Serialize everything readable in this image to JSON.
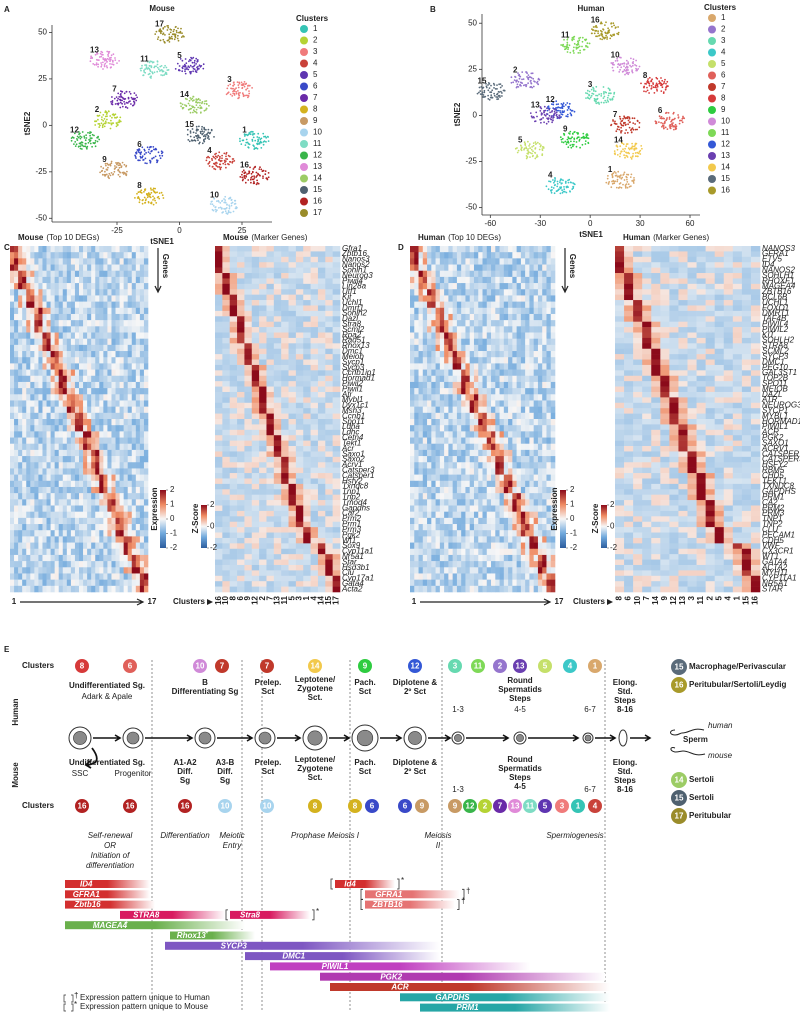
{
  "chart_data": [
    {
      "type": "scatter",
      "panel": "A",
      "title": "Mouse",
      "x_label": "tSNE1",
      "y_label": "tSNE2",
      "xlim": [
        -51,
        37
      ],
      "ylim": [
        -52,
        54
      ],
      "xticks": [
        -25,
        0,
        25
      ],
      "yticks": [
        -50,
        -25,
        0,
        25,
        50
      ],
      "legend_title": "Clusters",
      "series": [
        {
          "name": "1",
          "color": "#35c4b5",
          "x": [
            30
          ],
          "values": [
            -8
          ]
        },
        {
          "name": "2",
          "color": "#b5d334",
          "x": [
            -29
          ],
          "values": [
            3
          ]
        },
        {
          "name": "3",
          "color": "#f07b7b",
          "x": [
            24
          ],
          "values": [
            19
          ]
        },
        {
          "name": "4",
          "color": "#c9423a",
          "x": [
            16
          ],
          "values": [
            -19
          ]
        },
        {
          "name": "5",
          "color": "#5e35b1",
          "x": [
            4
          ],
          "values": [
            32
          ]
        },
        {
          "name": "6",
          "color": "#3949c8",
          "x": [
            -12
          ],
          "values": [
            -16
          ]
        },
        {
          "name": "7",
          "color": "#6a2aa8",
          "x": [
            -22
          ],
          "values": [
            14
          ]
        },
        {
          "name": "8",
          "color": "#d4b21e",
          "x": [
            -12
          ],
          "values": [
            -38
          ]
        },
        {
          "name": "9",
          "color": "#c89a64",
          "x": [
            -26
          ],
          "values": [
            -24
          ]
        },
        {
          "name": "10",
          "color": "#a8d4ee",
          "x": [
            18
          ],
          "values": [
            -43
          ]
        },
        {
          "name": "11",
          "color": "#7edcc4",
          "x": [
            -10
          ],
          "values": [
            30
          ]
        },
        {
          "name": "12",
          "color": "#39b54a",
          "x": [
            -38
          ],
          "values": [
            -8
          ]
        },
        {
          "name": "13",
          "color": "#e08ad8",
          "x": [
            -30
          ],
          "values": [
            35
          ]
        },
        {
          "name": "14",
          "color": "#9ccc65",
          "x": [
            6
          ],
          "values": [
            11
          ]
        },
        {
          "name": "15",
          "color": "#4f6170",
          "x": [
            8
          ],
          "values": [
            -5
          ]
        },
        {
          "name": "16",
          "color": "#b22222",
          "x": [
            30
          ],
          "values": [
            -27
          ]
        },
        {
          "name": "17",
          "color": "#9a8c2a",
          "x": [
            -4
          ],
          "values": [
            49
          ]
        }
      ]
    },
    {
      "type": "scatter",
      "panel": "B",
      "title": "Human",
      "x_label": "tSNE1",
      "y_label": "tSNE2",
      "xlim": [
        -65,
        66
      ],
      "ylim": [
        -54,
        55
      ],
      "xticks": [
        -60,
        -30,
        0,
        30,
        60
      ],
      "yticks": [
        -50,
        -25,
        0,
        25,
        50
      ],
      "legend_title": "Clusters",
      "series": [
        {
          "name": "1",
          "color": "#d9a86c",
          "x": [
            18
          ],
          "values": [
            -35
          ]
        },
        {
          "name": "2",
          "color": "#9575cd",
          "x": [
            -39
          ],
          "values": [
            19
          ]
        },
        {
          "name": "3",
          "color": "#66d9b0",
          "x": [
            6
          ],
          "values": [
            11
          ]
        },
        {
          "name": "4",
          "color": "#3cc8c8",
          "x": [
            -18
          ],
          "values": [
            -38
          ]
        },
        {
          "name": "5",
          "color": "#c5e06a",
          "x": [
            -36
          ],
          "values": [
            -19
          ]
        },
        {
          "name": "6",
          "color": "#e0605a",
          "x": [
            48
          ],
          "values": [
            -3
          ]
        },
        {
          "name": "7",
          "color": "#c0392b",
          "x": [
            21
          ],
          "values": [
            -5
          ]
        },
        {
          "name": "8",
          "color": "#d63a3a",
          "x": [
            39
          ],
          "values": [
            16
          ]
        },
        {
          "name": "9",
          "color": "#2ecc40",
          "x": [
            -9
          ],
          "values": [
            -13
          ]
        },
        {
          "name": "10",
          "color": "#d08ad8",
          "x": [
            21
          ],
          "values": [
            27
          ]
        },
        {
          "name": "11",
          "color": "#7ed957",
          "x": [
            -9
          ],
          "values": [
            38
          ]
        },
        {
          "name": "12",
          "color": "#3458d6",
          "x": [
            -18
          ],
          "values": [
            3
          ]
        },
        {
          "name": "13",
          "color": "#6a3fb0",
          "x": [
            -27
          ],
          "values": [
            0
          ]
        },
        {
          "name": "14",
          "color": "#f2c94c",
          "x": [
            23
          ],
          "values": [
            -19
          ]
        },
        {
          "name": "15",
          "color": "#5a6b7a",
          "x": [
            -59
          ],
          "values": [
            13
          ]
        },
        {
          "name": "16",
          "color": "#a89a2a",
          "x": [
            9
          ],
          "values": [
            46
          ]
        }
      ]
    }
  ],
  "heatmaps": [
    {
      "letter": "C",
      "left_title_bold": "Mouse",
      "left_title_rest": "(Top 10 DEGs)",
      "genes_label": "Genes",
      "expression_label": "Expression",
      "expression_ticks": [
        2,
        1,
        0,
        -1,
        -2
      ],
      "x_start": "1",
      "x_end": "17",
      "right_title_bold": "Mouse",
      "right_title_rest": "(Marker Genes)",
      "zscore_label": "Z-Score",
      "zscore_ticks": [
        2,
        0,
        -2
      ],
      "clusters_label": "Clusters",
      "cluster_order": [
        "16",
        "10",
        "8",
        "6",
        "9",
        "12",
        "2",
        "7",
        "13",
        "11",
        "5",
        "3",
        "1",
        "4",
        "14",
        "15",
        "17"
      ],
      "marker_genes": [
        "Gfra1",
        "Zbtb16",
        "Nanos3",
        "Nanos2",
        "Sohlh1",
        "Neurog3",
        "Piwil4",
        "Lin28a",
        "Utf1",
        "Kit",
        "Uchl1",
        "Dmrt1",
        "Sohlh2",
        "Dazl",
        "Stra8",
        "Scml2",
        "Rpa2",
        "Rad51",
        "Rhox13",
        "Dmc1",
        "Meiob",
        "Sycp1",
        "Sycp3",
        "Ccnb1ip1",
        "Hormad1",
        "Piwil2",
        "Piwil1",
        "Atr",
        "Mybl1",
        "Dyx1c1",
        "Msh3",
        "Ccnb1",
        "Spo11",
        "Ldha",
        "Ldhc",
        "Cetn4",
        "Tekt1",
        "Acr",
        "Saxo1",
        "Saxo2",
        "Acrv1",
        "Catsper3",
        "Catsper1",
        "Hsfy2",
        "Txndc8",
        "Tnp1",
        "Tnp2",
        "Tmod4",
        "Gapdhs",
        "Car2",
        "Prm2",
        "Prm1",
        "Prm3",
        "Pgk2",
        "Wt1",
        "Sox9",
        "Cyp11a1",
        "Nr5a1",
        "Star",
        "Hsd3b1",
        "Clu",
        "Cyp17a1",
        "Gata4",
        "Acta2"
      ]
    },
    {
      "letter": "D",
      "left_title_bold": "Human",
      "left_title_rest": "(Top 10 DEGs)",
      "genes_label": "Genes",
      "expression_label": "Expression",
      "expression_ticks": [
        2,
        1,
        0,
        -1,
        -2
      ],
      "x_start": "1",
      "x_end": "17",
      "right_title_bold": "Human",
      "right_title_rest": "(Marker Genes)",
      "zscore_label": "Z-Score",
      "zscore_ticks": [
        2,
        0,
        -2
      ],
      "clusters_label": "Clusters",
      "cluster_order": [
        "8",
        "6",
        "10",
        "7",
        "14",
        "9",
        "12",
        "13",
        "3",
        "11",
        "2",
        "5",
        "4",
        "1",
        "15",
        "16"
      ],
      "marker_genes": [
        "NANOS3",
        "GFRA1",
        "ETV5",
        "ID4",
        "NANOS2",
        "SOHLH1",
        "RHOXF1",
        "MAGEA4",
        "ZBTB16",
        "BCL6B",
        "UCHL1",
        "FOXO1",
        "DMRT1",
        "TAF4B",
        "PIWIL4",
        "PIWIL2",
        "KIT",
        "SOHLH2",
        "STRA8",
        "SCML2",
        "SYCP3",
        "DMC1",
        "PEG10",
        "GAL3ST1",
        "TOP2B",
        "SPO11",
        "MEIOB",
        "DAZL",
        "ATR",
        "NEUROG3",
        "SYCP1",
        "MYBL1",
        "HORMAD1",
        "PIWIL1",
        "ACR",
        "PGK2",
        "SAXO1",
        "ACRV1",
        "CATSPER1",
        "CATSPER3",
        "HSFY2",
        "RBM5",
        "CHD5",
        "TEKT1",
        "TXNDC8",
        "GAPDHS",
        "PRM1",
        "CA2",
        "PRM2",
        "PRM3",
        "TNP1",
        "TNP2",
        "CLU",
        "PECAM1",
        "CDH5",
        "VWF",
        "CX3CR1",
        "WT1",
        "GATA4",
        "ACTA2",
        "MYH11",
        "CYP11A1",
        "NR5A1",
        "STAR"
      ]
    }
  ],
  "schematic": {
    "letter": "E",
    "clusters_label": "Clusters",
    "human_label": "Human",
    "mouse_label": "Mouse",
    "human_clusters": [
      {
        "label": "8",
        "color": "#d63a3a"
      },
      {
        "label": "6",
        "color": "#e0605a"
      },
      {
        "label": "10",
        "color": "#d08ad8"
      },
      {
        "label": "7",
        "color": "#c0392b"
      },
      {
        "label": "7",
        "color": "#c0392b"
      },
      {
        "label": "14",
        "color": "#f2c94c"
      },
      {
        "label": "9",
        "color": "#2ecc40"
      },
      {
        "label": "12",
        "color": "#3458d6"
      },
      {
        "label": "3",
        "color": "#66d9b0"
      },
      {
        "label": "11",
        "color": "#7ed957"
      },
      {
        "label": "2",
        "color": "#9575cd"
      },
      {
        "label": "13",
        "color": "#6a3fb0"
      },
      {
        "label": "5",
        "color": "#c5e06a"
      },
      {
        "label": "4",
        "color": "#3cc8c8"
      },
      {
        "label": "1",
        "color": "#d9a86c"
      }
    ],
    "mouse_clusters": [
      {
        "label": "16",
        "color": "#b22222"
      },
      {
        "label": "16",
        "color": "#b22222"
      },
      {
        "label": "16",
        "color": "#b22222"
      },
      {
        "label": "10",
        "color": "#a8d4ee"
      },
      {
        "label": "10",
        "color": "#a8d4ee"
      },
      {
        "label": "8",
        "color": "#d4b21e"
      },
      {
        "label": "8",
        "color": "#d4b21e"
      },
      {
        "label": "6",
        "color": "#3949c8"
      },
      {
        "label": "6",
        "color": "#3949c8"
      },
      {
        "label": "9",
        "color": "#c89a64"
      },
      {
        "label": "9",
        "color": "#c89a64"
      },
      {
        "label": "12",
        "color": "#39b54a"
      },
      {
        "label": "2",
        "color": "#b5d334"
      },
      {
        "label": "7",
        "color": "#6a2aa8"
      },
      {
        "label": "13",
        "color": "#e08ad8"
      },
      {
        "label": "11",
        "color": "#7edcc4"
      },
      {
        "label": "5",
        "color": "#5e35b1"
      },
      {
        "label": "3",
        "color": "#f07b7b"
      },
      {
        "label": "1",
        "color": "#35c4b5"
      },
      {
        "label": "4",
        "color": "#c9423a"
      }
    ],
    "human_stages": [
      [
        "Undifferentiated Sg."
      ],
      [
        "Adark & Apale"
      ],
      [
        "B",
        "Differentiating Sg"
      ],
      [
        "Prelep.",
        "Sct"
      ],
      [
        "Leptotene/",
        "Zygotene",
        "Sct."
      ],
      [
        "Pach.",
        "Sct"
      ],
      [
        "Diplotene &",
        "2º Sct"
      ],
      [
        "Round",
        "Spermatids",
        "Steps"
      ],
      [
        "1-3"
      ],
      [
        "4-5"
      ],
      [
        "6-7"
      ],
      [
        "Elong.",
        "Std.",
        "Steps",
        "8-16"
      ]
    ],
    "mouse_stages": [
      [
        "Undifferentiated Sg."
      ],
      [
        "SSC"
      ],
      [
        "Progenitor"
      ],
      [
        "A1-A2",
        "Diff.",
        "Sg"
      ],
      [
        "A3-B",
        "Diff.",
        "Sg"
      ],
      [
        "Prelep.",
        "Sct"
      ],
      [
        "Leptotene/",
        "Zygotene",
        "Sct."
      ],
      [
        "Pach.",
        "Sct"
      ],
      [
        "Diplotene &",
        "2º Sct"
      ],
      [
        "Round",
        "Spermatids",
        "Steps",
        "4-5"
      ],
      [
        "1-3"
      ],
      [
        "6-7"
      ],
      [
        "Elong.",
        "Std.",
        "Steps",
        "8-16"
      ]
    ],
    "sperm_label": "Sperm",
    "sperm_human": "human",
    "sperm_mouse": "mouse",
    "human_somatic": [
      {
        "label": "15",
        "color": "#5a6b7a",
        "text": "Macrophage/Perivascular"
      },
      {
        "label": "16",
        "color": "#a89a2a",
        "text": "Peritubular/Sertoli/Leydig"
      }
    ],
    "mouse_somatic": [
      {
        "label": "14",
        "color": "#9ccc65",
        "text": "Sertoli"
      },
      {
        "label": "15",
        "color": "#4f6170",
        "text": "Sertoli"
      },
      {
        "label": "17",
        "color": "#9a8c2a",
        "text": "Peritubular"
      }
    ],
    "phases": [
      [
        "Self-renewal",
        "OR",
        "Initiation of",
        "differentiation"
      ],
      [
        "Differentiation"
      ],
      [
        "Meiotic",
        "Entry"
      ],
      [
        "Prophase Meiosis I"
      ],
      [
        "Meiosis",
        "II"
      ],
      [
        "Spermiogenesis"
      ]
    ],
    "genes": [
      {
        "label": "ID4",
        "color": "#d32f2f"
      },
      {
        "label": "Id4",
        "color": "#d32f2f",
        "marker": "*"
      },
      {
        "label": "GFRA1",
        "color": "#d32f2f"
      },
      {
        "label": "GFRA1",
        "color": "#e57373",
        "marker": "†"
      },
      {
        "label": "Zbtb16",
        "color": "#d32f2f"
      },
      {
        "label": "ZBTB16",
        "color": "#e57373",
        "marker": "†"
      },
      {
        "label": "STRA8",
        "color": "#d81b60"
      },
      {
        "label": "Stra8",
        "color": "#d81b60",
        "marker": "*"
      },
      {
        "label": "MAGEA4",
        "color": "#6ab04c",
        "marker": "†"
      },
      {
        "label": "Rhox13",
        "color": "#6ab04c",
        "marker": "*"
      },
      {
        "label": "SYCP3",
        "color": "#7e57c2"
      },
      {
        "label": "DMC1",
        "color": "#7e57c2"
      },
      {
        "label": "PIWIL1",
        "color": "#c040c0"
      },
      {
        "label": "PGK2",
        "color": "#b03ab0"
      },
      {
        "label": "ACR",
        "color": "#c0392b"
      },
      {
        "label": "GAPDHS",
        "color": "#26a6a6"
      },
      {
        "label": "PRM1",
        "color": "#26a6a6"
      }
    ],
    "footnotes": [
      {
        "marker": "†",
        "text": "Expression pattern unique to Human"
      },
      {
        "marker": "*",
        "text": "Expression pattern unique to Mouse"
      }
    ]
  }
}
